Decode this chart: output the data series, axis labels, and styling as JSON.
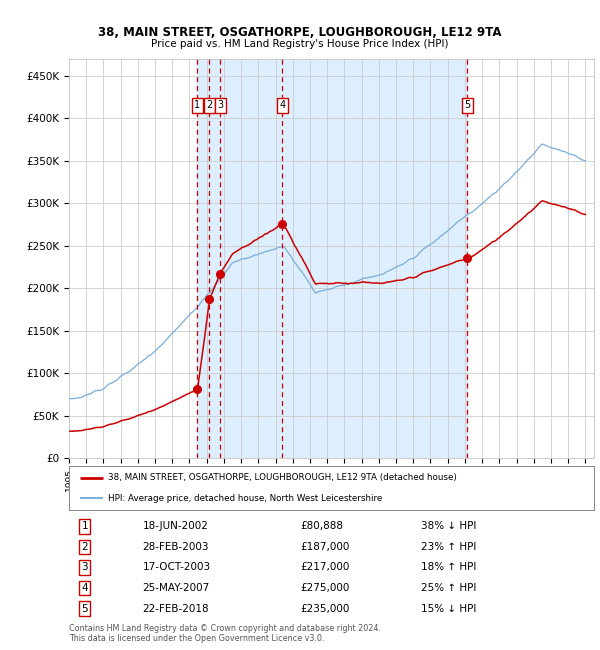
{
  "title1": "38, MAIN STREET, OSGATHORPE, LOUGHBOROUGH, LE12 9TA",
  "title2": "Price paid vs. HM Land Registry's House Price Index (HPI)",
  "ylim": [
    0,
    470000
  ],
  "yticks": [
    0,
    50000,
    100000,
    150000,
    200000,
    250000,
    300000,
    350000,
    400000,
    450000
  ],
  "ytick_labels": [
    "£0",
    "£50K",
    "£100K",
    "£150K",
    "£200K",
    "£250K",
    "£300K",
    "£350K",
    "£400K",
    "£450K"
  ],
  "sales": [
    {
      "label": "1",
      "date_num": 2002.46,
      "price": 80888
    },
    {
      "label": "2",
      "date_num": 2003.16,
      "price": 187000
    },
    {
      "label": "3",
      "date_num": 2003.79,
      "price": 217000
    },
    {
      "label": "4",
      "date_num": 2007.39,
      "price": 275000
    },
    {
      "label": "5",
      "date_num": 2018.14,
      "price": 235000
    }
  ],
  "legend_line1": "38, MAIN STREET, OSGATHORPE, LOUGHBOROUGH, LE12 9TA (detached house)",
  "legend_line2": "HPI: Average price, detached house, North West Leicestershire",
  "table_rows": [
    {
      "num": "1",
      "date": "18-JUN-2002",
      "price": "£80,888",
      "hpi": "38% ↓ HPI"
    },
    {
      "num": "2",
      "date": "28-FEB-2003",
      "price": "£187,000",
      "hpi": "23% ↑ HPI"
    },
    {
      "num": "3",
      "date": "17-OCT-2003",
      "price": "£217,000",
      "hpi": "18% ↑ HPI"
    },
    {
      "num": "4",
      "date": "25-MAY-2007",
      "price": "£275,000",
      "hpi": "25% ↑ HPI"
    },
    {
      "num": "5",
      "date": "22-FEB-2018",
      "price": "£235,000",
      "hpi": "15% ↓ HPI"
    }
  ],
  "footer": "Contains HM Land Registry data © Crown copyright and database right 2024.\nThis data is licensed under the Open Government Licence v3.0.",
  "hpi_color": "#7aadd8",
  "price_color": "#cc0000",
  "shade_color": "#ddeeff",
  "background_color": "#ffffff",
  "grid_color": "#cccccc"
}
